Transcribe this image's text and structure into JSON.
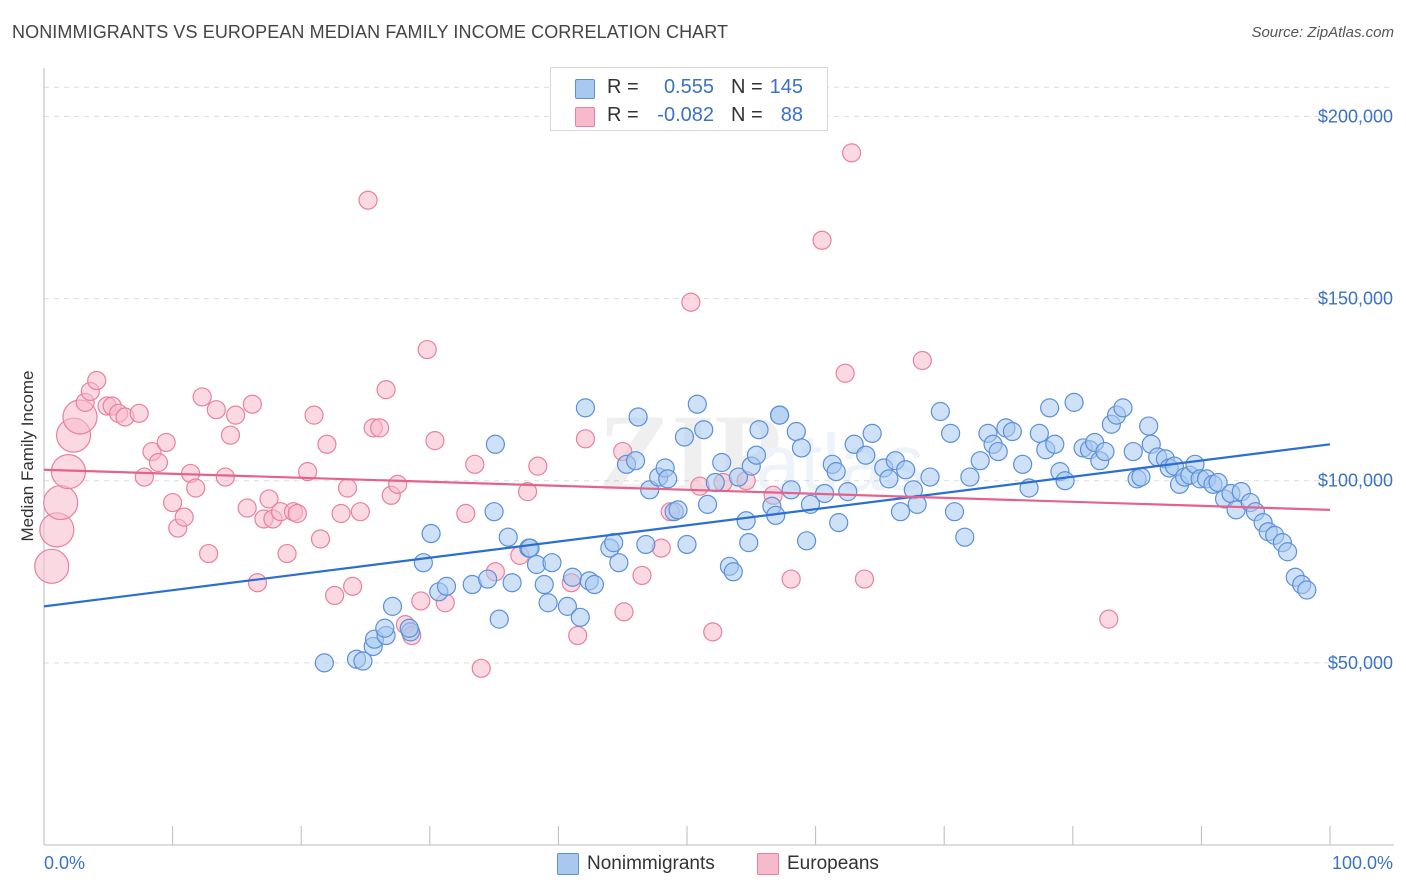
{
  "title": "NONIMMIGRANTS VS EUROPEAN MEDIAN FAMILY INCOME CORRELATION CHART",
  "source": "Source: ZipAtlas.com",
  "colors": {
    "blue_fill": "#a8c8f0",
    "blue_stroke": "#5b90d8",
    "blue_line": "#2a6fcf",
    "pink_fill": "#f7b9cc",
    "pink_stroke": "#e8809f",
    "pink_line": "#e5628c",
    "tick_text": "#3b72c4",
    "grid": "#dcdcdc"
  },
  "stats": [
    {
      "r_label": "R =",
      "r_value": "0.555",
      "n_label": "N =",
      "n_value": "145",
      "swatch": "blue"
    },
    {
      "r_label": "R =",
      "r_value": "-0.082",
      "n_label": "N =",
      "n_value": "88",
      "swatch": "pink"
    }
  ],
  "legend": [
    {
      "label": "Nonimmigrants",
      "swatch": "blue"
    },
    {
      "label": "Europeans",
      "swatch": "pink"
    }
  ],
  "chart_data": {
    "type": "scatter",
    "xlabel": "",
    "ylabel": "Median Family Income",
    "xlim": [
      0,
      100
    ],
    "ylim": [
      0,
      210000
    ],
    "x_tick_labels": [
      "0.0%",
      "100.0%"
    ],
    "y_ticks": [
      {
        "value": 50000,
        "label": "$50,000"
      },
      {
        "value": 100000,
        "label": "$100,000"
      },
      {
        "value": 150000,
        "label": "$150,000"
      },
      {
        "value": 200000,
        "label": "$200,000"
      }
    ],
    "grid": true,
    "legend_position": "bottom-center",
    "trend_lines": [
      {
        "series": "Nonimmigrants",
        "x": [
          0,
          100
        ],
        "y": [
          65500,
          110000
        ]
      },
      {
        "series": "Europeans",
        "x": [
          0,
          100
        ],
        "y": [
          103000,
          92000
        ]
      }
    ],
    "series": [
      {
        "name": "Nonimmigrants",
        "color": "blue",
        "points": [
          [
            21.8,
            50000
          ],
          [
            24.3,
            51000
          ],
          [
            24.8,
            50500
          ],
          [
            25.6,
            54500
          ],
          [
            25.7,
            56500
          ],
          [
            26.6,
            57500
          ],
          [
            26.5,
            59500
          ],
          [
            27.1,
            65500
          ],
          [
            28.5,
            58500
          ],
          [
            28.4,
            59500
          ],
          [
            29.5,
            77500
          ],
          [
            30.1,
            85500
          ],
          [
            30.7,
            69500
          ],
          [
            31.3,
            71000
          ],
          [
            33.3,
            71500
          ],
          [
            34.5,
            73000
          ],
          [
            35.0,
            91500
          ],
          [
            35.1,
            110000
          ],
          [
            35.4,
            62000
          ],
          [
            36.1,
            84500
          ],
          [
            36.4,
            72000
          ],
          [
            37.7,
            81500
          ],
          [
            37.8,
            81500
          ],
          [
            38.3,
            77000
          ],
          [
            38.9,
            71500
          ],
          [
            39.2,
            66500
          ],
          [
            39.5,
            77500
          ],
          [
            40.7,
            65500
          ],
          [
            41.1,
            73500
          ],
          [
            41.7,
            62500
          ],
          [
            42.1,
            120000
          ],
          [
            42.4,
            72500
          ],
          [
            42.8,
            71500
          ],
          [
            44.0,
            81500
          ],
          [
            44.3,
            83000
          ],
          [
            44.7,
            77500
          ],
          [
            45.3,
            104500
          ],
          [
            46.0,
            105500
          ],
          [
            46.8,
            82500
          ],
          [
            47.1,
            97500
          ],
          [
            47.8,
            101000
          ],
          [
            48.3,
            103500
          ],
          [
            48.5,
            100500
          ],
          [
            49.0,
            91500
          ],
          [
            49.3,
            92000
          ],
          [
            50.0,
            82500
          ],
          [
            50.8,
            121000
          ],
          [
            51.3,
            114000
          ],
          [
            51.6,
            93500
          ],
          [
            52.2,
            99500
          ],
          [
            52.7,
            105000
          ],
          [
            53.3,
            76500
          ],
          [
            53.6,
            75000
          ],
          [
            54.0,
            101000
          ],
          [
            54.6,
            89000
          ],
          [
            54.8,
            83000
          ],
          [
            55.0,
            104000
          ],
          [
            55.4,
            107000
          ],
          [
            55.6,
            114000
          ],
          [
            56.6,
            93000
          ],
          [
            56.9,
            90500
          ],
          [
            57.2,
            118000
          ],
          [
            58.1,
            97500
          ],
          [
            58.5,
            113500
          ],
          [
            58.9,
            109000
          ],
          [
            59.3,
            83500
          ],
          [
            59.6,
            93500
          ],
          [
            60.7,
            96500
          ],
          [
            61.3,
            104500
          ],
          [
            61.6,
            102500
          ],
          [
            61.8,
            88500
          ],
          [
            62.5,
            97000
          ],
          [
            63.0,
            110000
          ],
          [
            63.9,
            107000
          ],
          [
            64.4,
            113000
          ],
          [
            65.3,
            103500
          ],
          [
            65.7,
            100500
          ],
          [
            66.2,
            105500
          ],
          [
            66.6,
            91500
          ],
          [
            67.0,
            103000
          ],
          [
            67.6,
            97500
          ],
          [
            67.9,
            93500
          ],
          [
            68.9,
            101000
          ],
          [
            69.7,
            119000
          ],
          [
            70.5,
            113000
          ],
          [
            70.8,
            91500
          ],
          [
            71.6,
            84500
          ],
          [
            72.0,
            101000
          ],
          [
            72.8,
            105500
          ],
          [
            73.4,
            113000
          ],
          [
            73.8,
            110000
          ],
          [
            74.2,
            108000
          ],
          [
            74.8,
            114500
          ],
          [
            75.3,
            113500
          ],
          [
            76.1,
            104500
          ],
          [
            76.6,
            98000
          ],
          [
            77.4,
            113000
          ],
          [
            77.9,
            108500
          ],
          [
            78.2,
            120000
          ],
          [
            78.6,
            110000
          ],
          [
            79.0,
            102500
          ],
          [
            79.4,
            100000
          ],
          [
            80.1,
            121500
          ],
          [
            80.8,
            109000
          ],
          [
            81.3,
            108500
          ],
          [
            81.7,
            110500
          ],
          [
            82.1,
            105500
          ],
          [
            82.5,
            108000
          ],
          [
            83.0,
            115500
          ],
          [
            83.4,
            118000
          ],
          [
            83.9,
            120000
          ],
          [
            84.7,
            108000
          ],
          [
            85.0,
            100500
          ],
          [
            85.3,
            101000
          ],
          [
            85.9,
            115000
          ],
          [
            86.1,
            110000
          ],
          [
            86.6,
            106500
          ],
          [
            87.2,
            106000
          ],
          [
            87.5,
            103500
          ],
          [
            87.9,
            104000
          ],
          [
            88.3,
            99000
          ],
          [
            88.7,
            101000
          ],
          [
            89.1,
            101500
          ],
          [
            89.5,
            104500
          ],
          [
            89.9,
            100500
          ],
          [
            90.4,
            100500
          ],
          [
            90.9,
            99000
          ],
          [
            91.3,
            99500
          ],
          [
            91.8,
            95000
          ],
          [
            92.3,
            96500
          ],
          [
            92.7,
            92000
          ],
          [
            93.1,
            97000
          ],
          [
            93.8,
            94000
          ],
          [
            94.2,
            91500
          ],
          [
            94.8,
            88500
          ],
          [
            95.2,
            86000
          ],
          [
            95.7,
            85000
          ],
          [
            96.3,
            83000
          ],
          [
            96.7,
            80500
          ],
          [
            97.3,
            73500
          ],
          [
            97.8,
            71500
          ],
          [
            98.2,
            70000
          ],
          [
            57.2,
            118000
          ],
          [
            49.8,
            112000
          ],
          [
            46.2,
            117500
          ]
        ]
      },
      {
        "name": "Europeans",
        "color": "pink",
        "points": [
          [
            0.6,
            76500
          ],
          [
            1.0,
            86500
          ],
          [
            1.3,
            94000
          ],
          [
            1.9,
            102500
          ],
          [
            2.3,
            112500
          ],
          [
            2.8,
            117500
          ],
          [
            3.2,
            121500
          ],
          [
            3.6,
            124500
          ],
          [
            4.1,
            127500
          ],
          [
            4.9,
            120500
          ],
          [
            5.3,
            120500
          ],
          [
            5.8,
            118500
          ],
          [
            6.3,
            117500
          ],
          [
            7.4,
            118500
          ],
          [
            7.8,
            101000
          ],
          [
            8.4,
            108000
          ],
          [
            8.9,
            105000
          ],
          [
            9.5,
            110500
          ],
          [
            10.0,
            94000
          ],
          [
            10.4,
            87000
          ],
          [
            10.9,
            90000
          ],
          [
            11.4,
            102000
          ],
          [
            11.8,
            98000
          ],
          [
            12.3,
            123000
          ],
          [
            12.8,
            80000
          ],
          [
            13.4,
            119500
          ],
          [
            14.1,
            101000
          ],
          [
            14.5,
            112500
          ],
          [
            14.9,
            118000
          ],
          [
            15.8,
            92500
          ],
          [
            16.2,
            121000
          ],
          [
            16.6,
            72000
          ],
          [
            17.1,
            89500
          ],
          [
            17.5,
            95000
          ],
          [
            17.8,
            89500
          ],
          [
            18.4,
            91500
          ],
          [
            18.9,
            80000
          ],
          [
            19.4,
            91500
          ],
          [
            19.7,
            91000
          ],
          [
            20.5,
            102500
          ],
          [
            21.0,
            118000
          ],
          [
            21.5,
            84000
          ],
          [
            22.0,
            110000
          ],
          [
            22.6,
            68500
          ],
          [
            23.1,
            91000
          ],
          [
            23.6,
            98000
          ],
          [
            24.0,
            71000
          ],
          [
            24.6,
            91500
          ],
          [
            25.2,
            177000
          ],
          [
            25.6,
            114500
          ],
          [
            26.1,
            114500
          ],
          [
            26.6,
            125000
          ],
          [
            27.0,
            96000
          ],
          [
            27.5,
            99000
          ],
          [
            28.1,
            60500
          ],
          [
            28.6,
            57500
          ],
          [
            29.3,
            67000
          ],
          [
            29.8,
            136000
          ],
          [
            30.4,
            111000
          ],
          [
            31.2,
            66500
          ],
          [
            32.8,
            91000
          ],
          [
            33.5,
            104500
          ],
          [
            34.0,
            48500
          ],
          [
            35.1,
            75000
          ],
          [
            37.0,
            79500
          ],
          [
            37.6,
            97000
          ],
          [
            38.4,
            104000
          ],
          [
            41.0,
            72000
          ],
          [
            41.5,
            57500
          ],
          [
            42.1,
            111500
          ],
          [
            45.0,
            108000
          ],
          [
            45.1,
            64000
          ],
          [
            48.0,
            81500
          ],
          [
            48.7,
            91500
          ],
          [
            50.3,
            149000
          ],
          [
            52.0,
            58500
          ],
          [
            54.6,
            100000
          ],
          [
            56.7,
            96000
          ],
          [
            58.1,
            73000
          ],
          [
            60.5,
            166000
          ],
          [
            62.3,
            129500
          ],
          [
            62.8,
            190000
          ],
          [
            63.8,
            73000
          ],
          [
            68.3,
            133000
          ],
          [
            82.8,
            62000
          ],
          [
            52.8,
            99500
          ],
          [
            51.0,
            98500
          ],
          [
            46.5,
            74000
          ]
        ]
      }
    ]
  }
}
